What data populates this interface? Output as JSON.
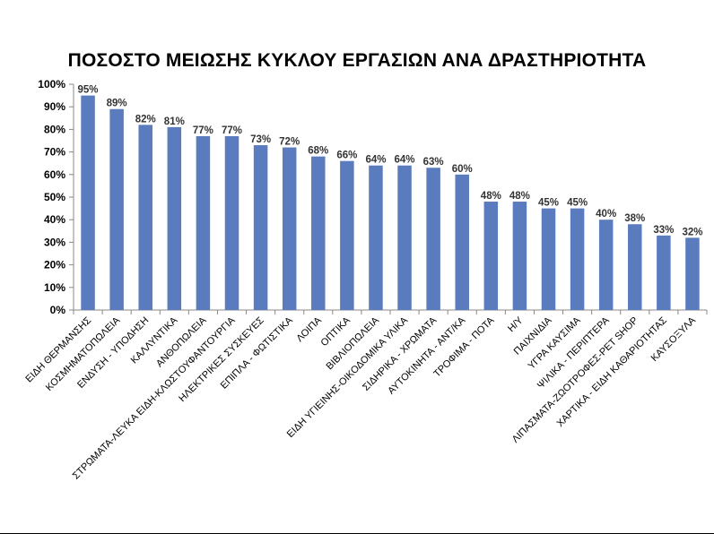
{
  "chart_data": {
    "type": "bar",
    "title": "ΠΟΣΟΣΤΟ ΜΕΙΩΣΗΣ ΚΥΚΛΟΥ ΕΡΓΑΣΙΩΝ ΑΝΑ ΔΡΑΣΤΗΡΙΟΤΗΤΑ",
    "xlabel": "",
    "ylabel": "",
    "ylim": [
      0,
      100
    ],
    "yticks": [
      "0%",
      "10%",
      "20%",
      "30%",
      "40%",
      "50%",
      "60%",
      "70%",
      "80%",
      "90%",
      "100%"
    ],
    "categories": [
      "ΕΙΔΗ ΘΕΡΜΑΝΣΗΣ",
      "ΚΟΣΜΗΜΑΤΟΠΩΛΕΙΑ",
      "ΕΝΔΥΣΗ - ΥΠΟΔΗΣΗ",
      "ΚΑΛΛΥΝΤΙΚΑ",
      "ΑΝΘΟΠΩΛΕΙΑ",
      "ΣΤΡΩΜΑΤΑ-ΛΕΥΚΑ ΕΙΔΗ-ΚΛΩΣΤΟΥΦΑΝΤΟΥΡΓΙΑ",
      "ΗΛΕΚΤΡΙΚΕΣ ΣΥΣΚΕΥΕΣ",
      "ΕΠΙΠΛΑ - ΦΩΤΙΣΤΙΚΑ",
      "ΛΟΙΠΑ",
      "ΟΠΤΙΚΑ",
      "ΒΙΒΛΙΟΠΩΛΕΙΑ",
      "ΕΙΔΗ ΥΓΙΕΙΝΗΣ-ΟΙΚΟΔΟΜΙΚΑ ΥΛΙΚΑ",
      "ΣΙΔΗΡΙΚΑ - ΧΡΩΜΑΤΑ",
      "ΑΥΤΟΚΙΝΗΤΑ - ΑΝΤ/ΚΑ",
      "ΤΡΟΦΙΜΑ - ΠΟΤΑ",
      "Η/Υ",
      "ΠΑΙΧΝΙΔΙΑ",
      "ΥΓΡΑ ΚΑΥΣΙΜΑ",
      "ΨΙΛΙΚΑ - ΠΕΡΙΠΤΕΡΑ",
      "ΛΙΠΑΣΜΑΤΑ-ΖΩΟΤΡΟΦΕΣ-PET SHOP",
      "ΧΑΡΤΙΚΑ - ΕΙΔΗ ΚΑΘΑΡΙΟΤΗΤΑΣ",
      "ΚΑΥΣΟΞΥΛΑ"
    ],
    "values": [
      95,
      89,
      82,
      81,
      77,
      77,
      73,
      72,
      68,
      66,
      64,
      64,
      63,
      60,
      48,
      48,
      45,
      45,
      40,
      38,
      33,
      32
    ],
    "data_labels": [
      "95%",
      "89%",
      "82%",
      "81%",
      "77%",
      "77%",
      "73%",
      "72%",
      "68%",
      "66%",
      "64%",
      "64%",
      "63%",
      "60%",
      "48%",
      "48%",
      "45%",
      "45%",
      "40%",
      "38%",
      "33%",
      "32%"
    ],
    "grid": false,
    "legend": "none",
    "bar_color": "#5B7BBF"
  }
}
